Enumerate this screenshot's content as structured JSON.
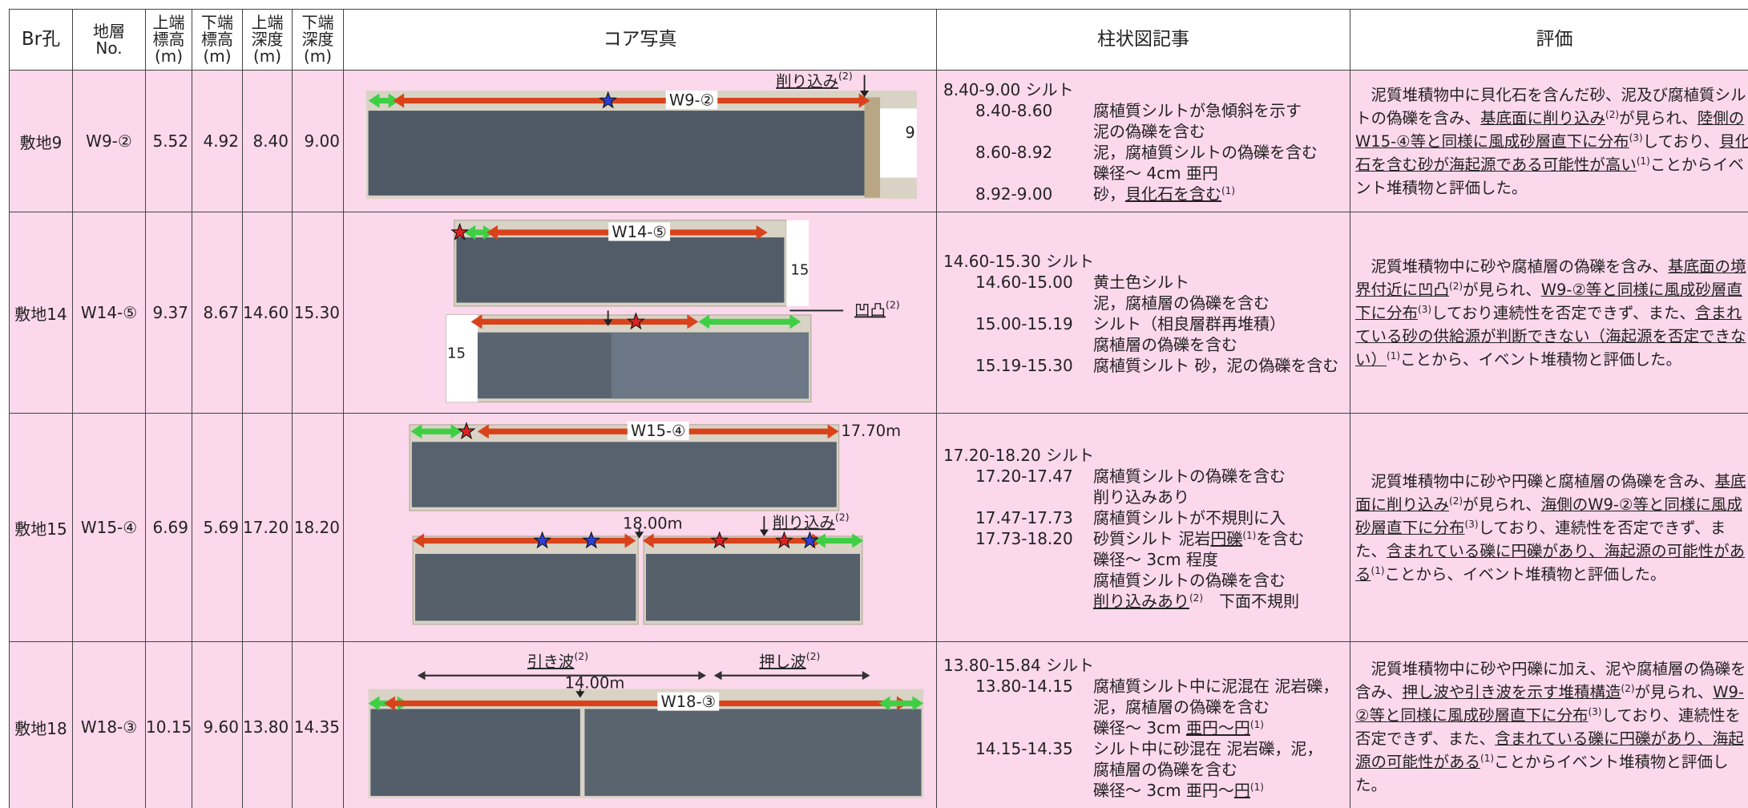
{
  "header": [
    "Br孔",
    "地層\nNo.",
    "上端\n標高\n(m)",
    "下端\n標高\n(m)",
    "上端\n深度\n(m)",
    "下端\n深度\n(m)",
    "コア写真",
    "柱状図記事",
    "評価"
  ],
  "rows": [
    {
      "br": "敷地9",
      "layer": "W9-②",
      "top_elev": "5.52",
      "bottom_elev": "4.92",
      "top_depth": "8.40",
      "bottom_depth": "9.00",
      "photo": [
        {
          "text": "W9-②"
        },
        {
          "text": "削り込み",
          "sup": "(2)",
          "u": true
        },
        {
          "text": "9"
        }
      ],
      "log": {
        "head": "8.40-9.00 シルト",
        "items": [
          {
            "depth": "8.40-8.60",
            "lines": [
              [
                "腐植質シルトが急傾斜を示す"
              ],
              [
                "泥の偽礫を含む"
              ]
            ]
          },
          {
            "depth": "8.60-8.92",
            "lines": [
              [
                "泥，腐植質シルトの偽礫を含む"
              ],
              [
                "礫径～ 4cm 亜円"
              ]
            ]
          },
          {
            "depth": "8.92-9.00",
            "lines": [
              [
                "砂，",
                {
                  "text": "貝化石を含む",
                  "u": true
                },
                {
                  "text": "(1)",
                  "sup": true
                }
              ]
            ]
          }
        ]
      },
      "evaluation": [
        "　泥質堆積物中に貝化石を含んだ砂、泥及び腐植質シルトの偽礫を含み、",
        {
          "text": "基底面に削り込み",
          "u": true
        },
        {
          "text": "(2)",
          "sup": true
        },
        "が見られ、",
        {
          "text": "陸側のW15-④等と同様に風成砂層直下に分布",
          "u": true
        },
        {
          "text": "(3)",
          "sup": true
        },
        "しており、",
        {
          "text": "貝化石を含む砂が海起源である可能性が高い",
          "u": true
        },
        {
          "text": "(1)",
          "sup": true
        },
        "ことからイベント堆積物と評価した。"
      ]
    },
    {
      "br": "敷地14",
      "layer": "W14-⑤",
      "top_elev": "9.37",
      "bottom_elev": "8.67",
      "top_depth": "14.60",
      "bottom_depth": "15.30",
      "photo": [
        {
          "text": "W14-⑤"
        },
        {
          "text": "15"
        },
        {
          "text": "凹凸",
          "sup": "(2)",
          "u": true
        },
        {
          "text": "15"
        }
      ],
      "log": {
        "head": "14.60-15.30 シルト",
        "items": [
          {
            "depth": "14.60-15.00",
            "lines": [
              [
                "黄土色シルト"
              ],
              [
                "泥，腐植層の偽礫を含む"
              ]
            ]
          },
          {
            "depth": "15.00-15.19",
            "lines": [
              [
                "シルト（相良層群再堆積）"
              ],
              [
                "腐植層の偽礫を含む"
              ]
            ]
          },
          {
            "depth": "15.19-15.30",
            "lines": [
              [
                "腐植質シルト 砂，泥の偽礫を含む"
              ]
            ]
          }
        ]
      },
      "evaluation": [
        "　泥質堆積物中に砂や腐植層の偽礫を含み、",
        {
          "text": "基底面の境界付近に凹凸",
          "u": true
        },
        {
          "text": "(2)",
          "sup": true
        },
        "が見られ、",
        {
          "text": "W9-②等と同様に風成砂層直下に分布",
          "u": true
        },
        {
          "text": "(3)",
          "sup": true
        },
        "しており連続性を否定できず、また、",
        {
          "text": "含まれている砂の供給源が判断できない（海起源を否定できない）",
          "u": true
        },
        {
          "text": "(1)",
          "sup": true
        },
        "ことから、イベント堆積物と評価した。"
      ]
    },
    {
      "br": "敷地15",
      "layer": "W15-④",
      "top_elev": "6.69",
      "bottom_elev": "5.69",
      "top_depth": "17.20",
      "bottom_depth": "18.20",
      "photo": [
        {
          "text": "W15-④"
        },
        {
          "text": "17.70m"
        },
        {
          "text": "18.00m"
        },
        {
          "text": "削り込み",
          "sup": "(2)",
          "u": true
        }
      ],
      "log": {
        "head": "17.20-18.20 シルト",
        "items": [
          {
            "depth": "17.20-17.47",
            "lines": [
              [
                "腐植質シルトの偽礫を含む"
              ],
              [
                "削り込みあり"
              ]
            ]
          },
          {
            "depth": "17.47-17.73",
            "lines": [
              [
                "腐植質シルトが不規則に入"
              ]
            ]
          },
          {
            "depth": "17.73-18.20",
            "lines": [
              [
                "砂質シルト 泥岩",
                {
                  "text": "円礫",
                  "u": true
                },
                {
                  "text": "(1)",
                  "sup": true
                },
                "を含む"
              ],
              [
                "礫径～ 3cm 程度"
              ],
              [
                "腐植質シルトの偽礫を含む"
              ],
              [
                {
                  "text": "削り込みあり",
                  "u": true
                },
                {
                  "text": "(2)",
                  "sup": true
                },
                "　下面不規則"
              ]
            ]
          }
        ]
      },
      "evaluation": [
        "　泥質堆積物中に砂や円礫と腐植層の偽礫を含み、",
        {
          "text": "基底面に削り込み",
          "u": true
        },
        {
          "text": "(2)",
          "sup": true
        },
        "が見られ、",
        {
          "text": "海側のW9-②等と同様に風成砂層直下に分布",
          "u": true
        },
        {
          "text": "(3)",
          "sup": true
        },
        "しており、連続性を否定できず、また、",
        {
          "text": "含まれている礫に円礫があり、海起源の可能性がある",
          "u": true
        },
        {
          "text": "(1)",
          "sup": true
        },
        "ことから、イベント堆積物と評価した。"
      ]
    },
    {
      "br": "敷地18",
      "layer": "W18-③",
      "top_elev": "10.15",
      "bottom_elev": "9.60",
      "top_depth": "13.80",
      "bottom_depth": "14.35",
      "photo": [
        {
          "text": "引き波",
          "sup": "(2)",
          "u": true
        },
        {
          "text": "押し波",
          "sup": "(2)",
          "u": true
        },
        {
          "text": "14.00m"
        },
        {
          "text": "W18-③"
        }
      ],
      "log": {
        "head": "13.80-15.84 シルト",
        "items": [
          {
            "depth": "13.80-14.15",
            "lines": [
              [
                "腐植質シルト中に泥混在 泥岩礫，"
              ],
              [
                "泥，腐植層の偽礫を含む"
              ],
              [
                "礫径～ 3cm ",
                {
                  "text": "亜円～円",
                  "u": true
                },
                {
                  "text": "(1)",
                  "sup": true
                }
              ]
            ]
          },
          {
            "depth": "14.15-14.35",
            "lines": [
              [
                "シルト中に砂混在 泥岩礫，泥，"
              ],
              [
                "腐植層の偽礫を含む"
              ],
              [
                "礫径～ 3cm 亜円～",
                {
                  "text": "円",
                  "u": true
                },
                {
                  "text": "(1)",
                  "sup": true
                }
              ]
            ]
          }
        ]
      },
      "evaluation": [
        "　泥質堆積物中に砂や円礫に加え、泥や腐植層の偽礫を含み、",
        {
          "text": "押し波や引き波を示す堆積構造",
          "u": true
        },
        {
          "text": "(2)",
          "sup": true
        },
        "が見られ、",
        {
          "text": "W9-②等と同様に風成砂層直下に分布",
          "u": true
        },
        {
          "text": "(3)",
          "sup": true
        },
        "しており、連続性を否定できず、また、",
        {
          "text": "含まれている礫に円礫があり、海起源の可能性がある",
          "u": true
        },
        {
          "text": "(1)",
          "sup": true
        },
        "ことからイベント堆積物と評価した。"
      ]
    }
  ]
}
